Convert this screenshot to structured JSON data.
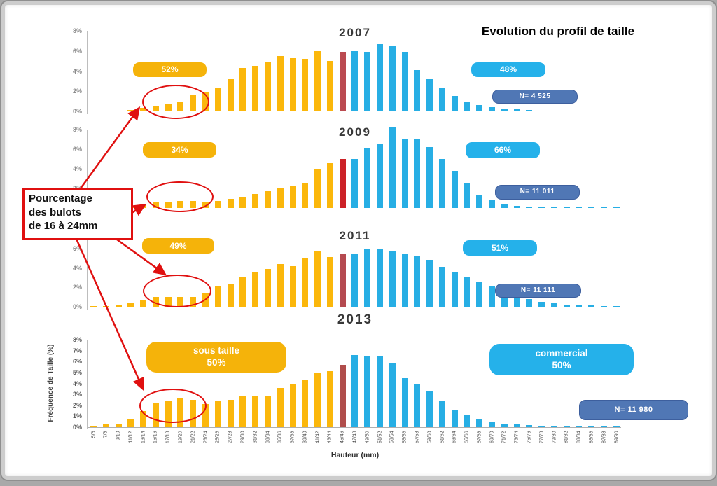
{
  "page": {
    "title": "Evolution du profil de taille"
  },
  "colors": {
    "yellow": "#FBB70B",
    "blue": "#27AEE4",
    "n_bg": "#5077B5",
    "n_border": "#3D5F9E",
    "pill_yellow": "#F5B30A",
    "pill_blue": "#25B1EA",
    "annotation_red": "#E01010"
  },
  "annotation_box": {
    "lines": [
      "Pourcentage",
      "des bulots",
      "de 16 à 24mm"
    ]
  },
  "axis": {
    "x_title": "Hauteur (mm)",
    "y_title": "Fréquence de Taille (%)",
    "categories": [
      "5/6",
      "7/8",
      "9/10",
      "11/12",
      "13/14",
      "15/16",
      "17/18",
      "19/20",
      "21/22",
      "23/24",
      "25/26",
      "27/28",
      "29/30",
      "31/32",
      "33/34",
      "35/36",
      "37/38",
      "39/40",
      "41/42",
      "43/44",
      "45/46",
      "47/48",
      "49/50",
      "51/52",
      "53/54",
      "55/56",
      "57/58",
      "59/60",
      "61/62",
      "63/64",
      "65/66",
      "67/68",
      "69/70",
      "71/72",
      "73/74",
      "75/76",
      "77/78",
      "79/80",
      "81/82",
      "83/84",
      "85/86",
      "87/88",
      "89/90"
    ]
  },
  "chart_data": [
    {
      "type": "bar",
      "year": "2007",
      "left_label": "52%",
      "right_label": "48%",
      "n_label": "N= 4 525",
      "red_index": 20,
      "red_color": "#BB4A50",
      "ylim": [
        0,
        8
      ],
      "yticks": [
        "8%",
        "6%",
        "4%",
        "2%",
        "0%"
      ],
      "values": [
        0.05,
        0.05,
        0.1,
        0.15,
        0.35,
        0.5,
        0.7,
        1.0,
        1.6,
        1.9,
        2.3,
        3.2,
        4.3,
        4.5,
        4.9,
        5.5,
        5.3,
        5.2,
        6.0,
        5.0,
        5.9,
        6.0,
        5.9,
        6.7,
        6.5,
        5.9,
        4.1,
        3.2,
        2.3,
        1.5,
        0.9,
        0.6,
        0.45,
        0.3,
        0.2,
        0.12,
        0.1,
        0.08,
        0.06,
        0.06,
        0.05,
        0.05,
        0.04
      ]
    },
    {
      "type": "bar",
      "year": "2009",
      "left_label": "34%",
      "right_label": "66%",
      "n_label": "N= 11 011",
      "red_index": 20,
      "red_color": "#CC2127",
      "ylim": [
        0,
        8
      ],
      "yticks": [
        "8%",
        "6%",
        "4%",
        "2%",
        "0%"
      ],
      "values": [
        0.08,
        0.08,
        0.12,
        0.15,
        0.3,
        0.55,
        0.65,
        0.75,
        0.75,
        0.6,
        0.75,
        0.9,
        1.1,
        1.4,
        1.7,
        2.0,
        2.3,
        2.6,
        4.0,
        4.6,
        5.0,
        5.0,
        6.1,
        6.5,
        8.3,
        7.1,
        7.0,
        6.2,
        5.0,
        3.8,
        2.5,
        1.3,
        0.8,
        0.4,
        0.25,
        0.15,
        0.12,
        0.1,
        0.08,
        0.08,
        0.06,
        0.06,
        0.05
      ]
    },
    {
      "type": "bar",
      "year": "2011",
      "left_label": "49%",
      "right_label": "51%",
      "n_label": "N= 11 111",
      "red_index": 20,
      "red_color": "#B54A50",
      "ylim": [
        0,
        8
      ],
      "yticks": [
        "8%",
        "6%",
        "4%",
        "2%",
        "0%"
      ],
      "values": [
        0.05,
        0.05,
        0.25,
        0.4,
        0.75,
        1.0,
        1.0,
        1.0,
        1.0,
        1.4,
        2.1,
        2.4,
        3.0,
        3.5,
        3.9,
        4.4,
        4.2,
        5.0,
        5.7,
        5.1,
        5.5,
        5.5,
        5.9,
        5.9,
        5.8,
        5.5,
        5.2,
        4.8,
        4.1,
        3.6,
        3.1,
        2.6,
        2.1,
        1.5,
        1.1,
        0.8,
        0.5,
        0.35,
        0.25,
        0.15,
        0.12,
        0.1,
        0.08
      ]
    },
    {
      "type": "bar",
      "year": "2013",
      "left_label_lines": [
        "sous taille",
        "50%"
      ],
      "right_label_lines": [
        "commercial",
        "50%"
      ],
      "n_label": "N= 11 980",
      "red_index": 20,
      "red_color": "#B04D4B",
      "ylim": [
        0,
        8
      ],
      "yticks": [
        "8%",
        "7%",
        "6%",
        "5%",
        "4%",
        "3%",
        "2%",
        "1%",
        "0%"
      ],
      "values": [
        0.05,
        0.25,
        0.3,
        0.7,
        1.5,
        2.2,
        2.4,
        2.7,
        2.5,
        2.1,
        2.4,
        2.5,
        2.8,
        2.9,
        2.8,
        3.6,
        3.9,
        4.3,
        4.9,
        5.1,
        5.7,
        6.6,
        6.5,
        6.5,
        5.9,
        4.5,
        3.9,
        3.3,
        2.4,
        1.6,
        1.1,
        0.75,
        0.5,
        0.35,
        0.25,
        0.18,
        0.15,
        0.1,
        0.08,
        0.08,
        0.08,
        0.06,
        0.05
      ]
    }
  ]
}
